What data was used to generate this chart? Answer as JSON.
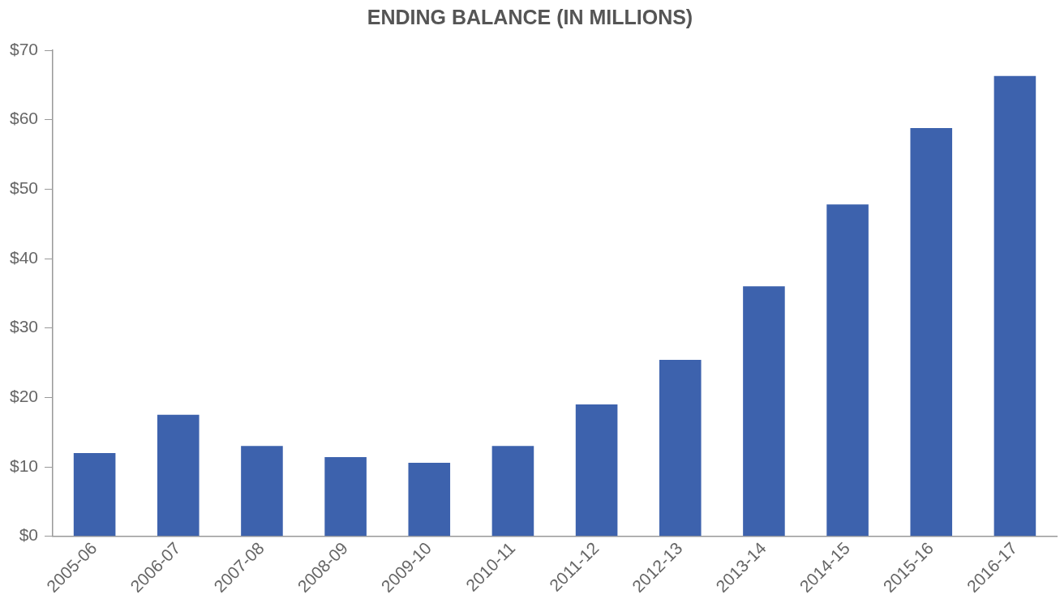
{
  "chart_data": {
    "type": "bar",
    "title": "ENDING BALANCE (IN MILLIONS)",
    "categories": [
      "2005-06",
      "2006-07",
      "2007-08",
      "2008-09",
      "2009-10",
      "2010-11",
      "2011-12",
      "2012-13",
      "2013-14",
      "2014-15",
      "2015-16",
      "2016-17"
    ],
    "values": [
      12,
      17.5,
      13,
      11.4,
      10.6,
      13,
      19,
      25.4,
      36,
      47.8,
      58.8,
      66.3
    ],
    "color": "#3d62ad",
    "ylim": [
      0,
      70
    ],
    "yticks": [
      {
        "value": 0,
        "label": "$0"
      },
      {
        "value": 10,
        "label": "$10"
      },
      {
        "value": 20,
        "label": "$20"
      },
      {
        "value": 30,
        "label": "$30"
      },
      {
        "value": 40,
        "label": "$40"
      },
      {
        "value": 50,
        "label": "$50"
      },
      {
        "value": 60,
        "label": "$60"
      },
      {
        "value": 70,
        "label": "$70"
      }
    ],
    "grid": false,
    "legend": false
  }
}
